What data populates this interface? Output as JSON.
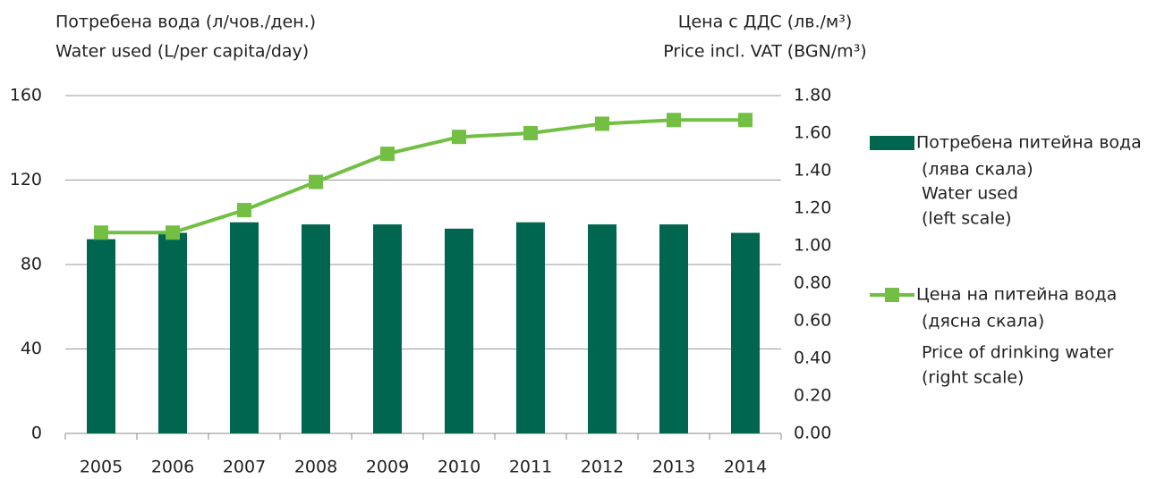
{
  "chart_data": {
    "type": "bar-line",
    "y_title": [
      "Потребена вода (л/чов./ден.)",
      "Water used (L/per capita/day)"
    ],
    "y2_title": [
      "Цена с ДДС (лв./м³)",
      "Price incl. VAT (BGN/m³)"
    ],
    "categories": [
      "2005",
      "2006",
      "2007",
      "2008",
      "2009",
      "2010",
      "2011",
      "2012",
      "2013",
      "2014"
    ],
    "ylim": [
      0,
      160
    ],
    "yticks": [
      0,
      40,
      80,
      120,
      160
    ],
    "y2lim": [
      0,
      1.8
    ],
    "y2ticks": [
      {
        "value": 0,
        "label": "0.00"
      },
      {
        "value": 0.2,
        "label": "0.20"
      },
      {
        "value": 0.4,
        "label": "0.40"
      },
      {
        "value": 0.6,
        "label": "0.60"
      },
      {
        "value": 0.8,
        "label": "0.80"
      },
      {
        "value": 1,
        "label": "1.00"
      },
      {
        "value": 1.2,
        "label": "1.20"
      },
      {
        "value": 1.4,
        "label": "1.40"
      },
      {
        "value": 1.6,
        "label": "1.60"
      },
      {
        "value": 1.8,
        "label": "1.80"
      }
    ],
    "grid": true,
    "series": [
      {
        "name": [
          "Потребена питейна вода",
          "(лява скала)",
          "Water used",
          "(left scale)"
        ],
        "type": "bar",
        "color": "#00664f",
        "values": [
          92,
          95,
          100,
          99,
          99,
          97,
          100,
          99,
          99,
          95
        ]
      },
      {
        "name": [
          "Цена на питейна вода",
          "(дясна скала)",
          "Price of drinking water",
          "(right scale)"
        ],
        "type": "line",
        "axis": "y2",
        "color": "#72bf44",
        "values": [
          1.07,
          1.07,
          1.19,
          1.34,
          1.49,
          1.58,
          1.6,
          1.65,
          1.67,
          1.67
        ]
      }
    ]
  }
}
